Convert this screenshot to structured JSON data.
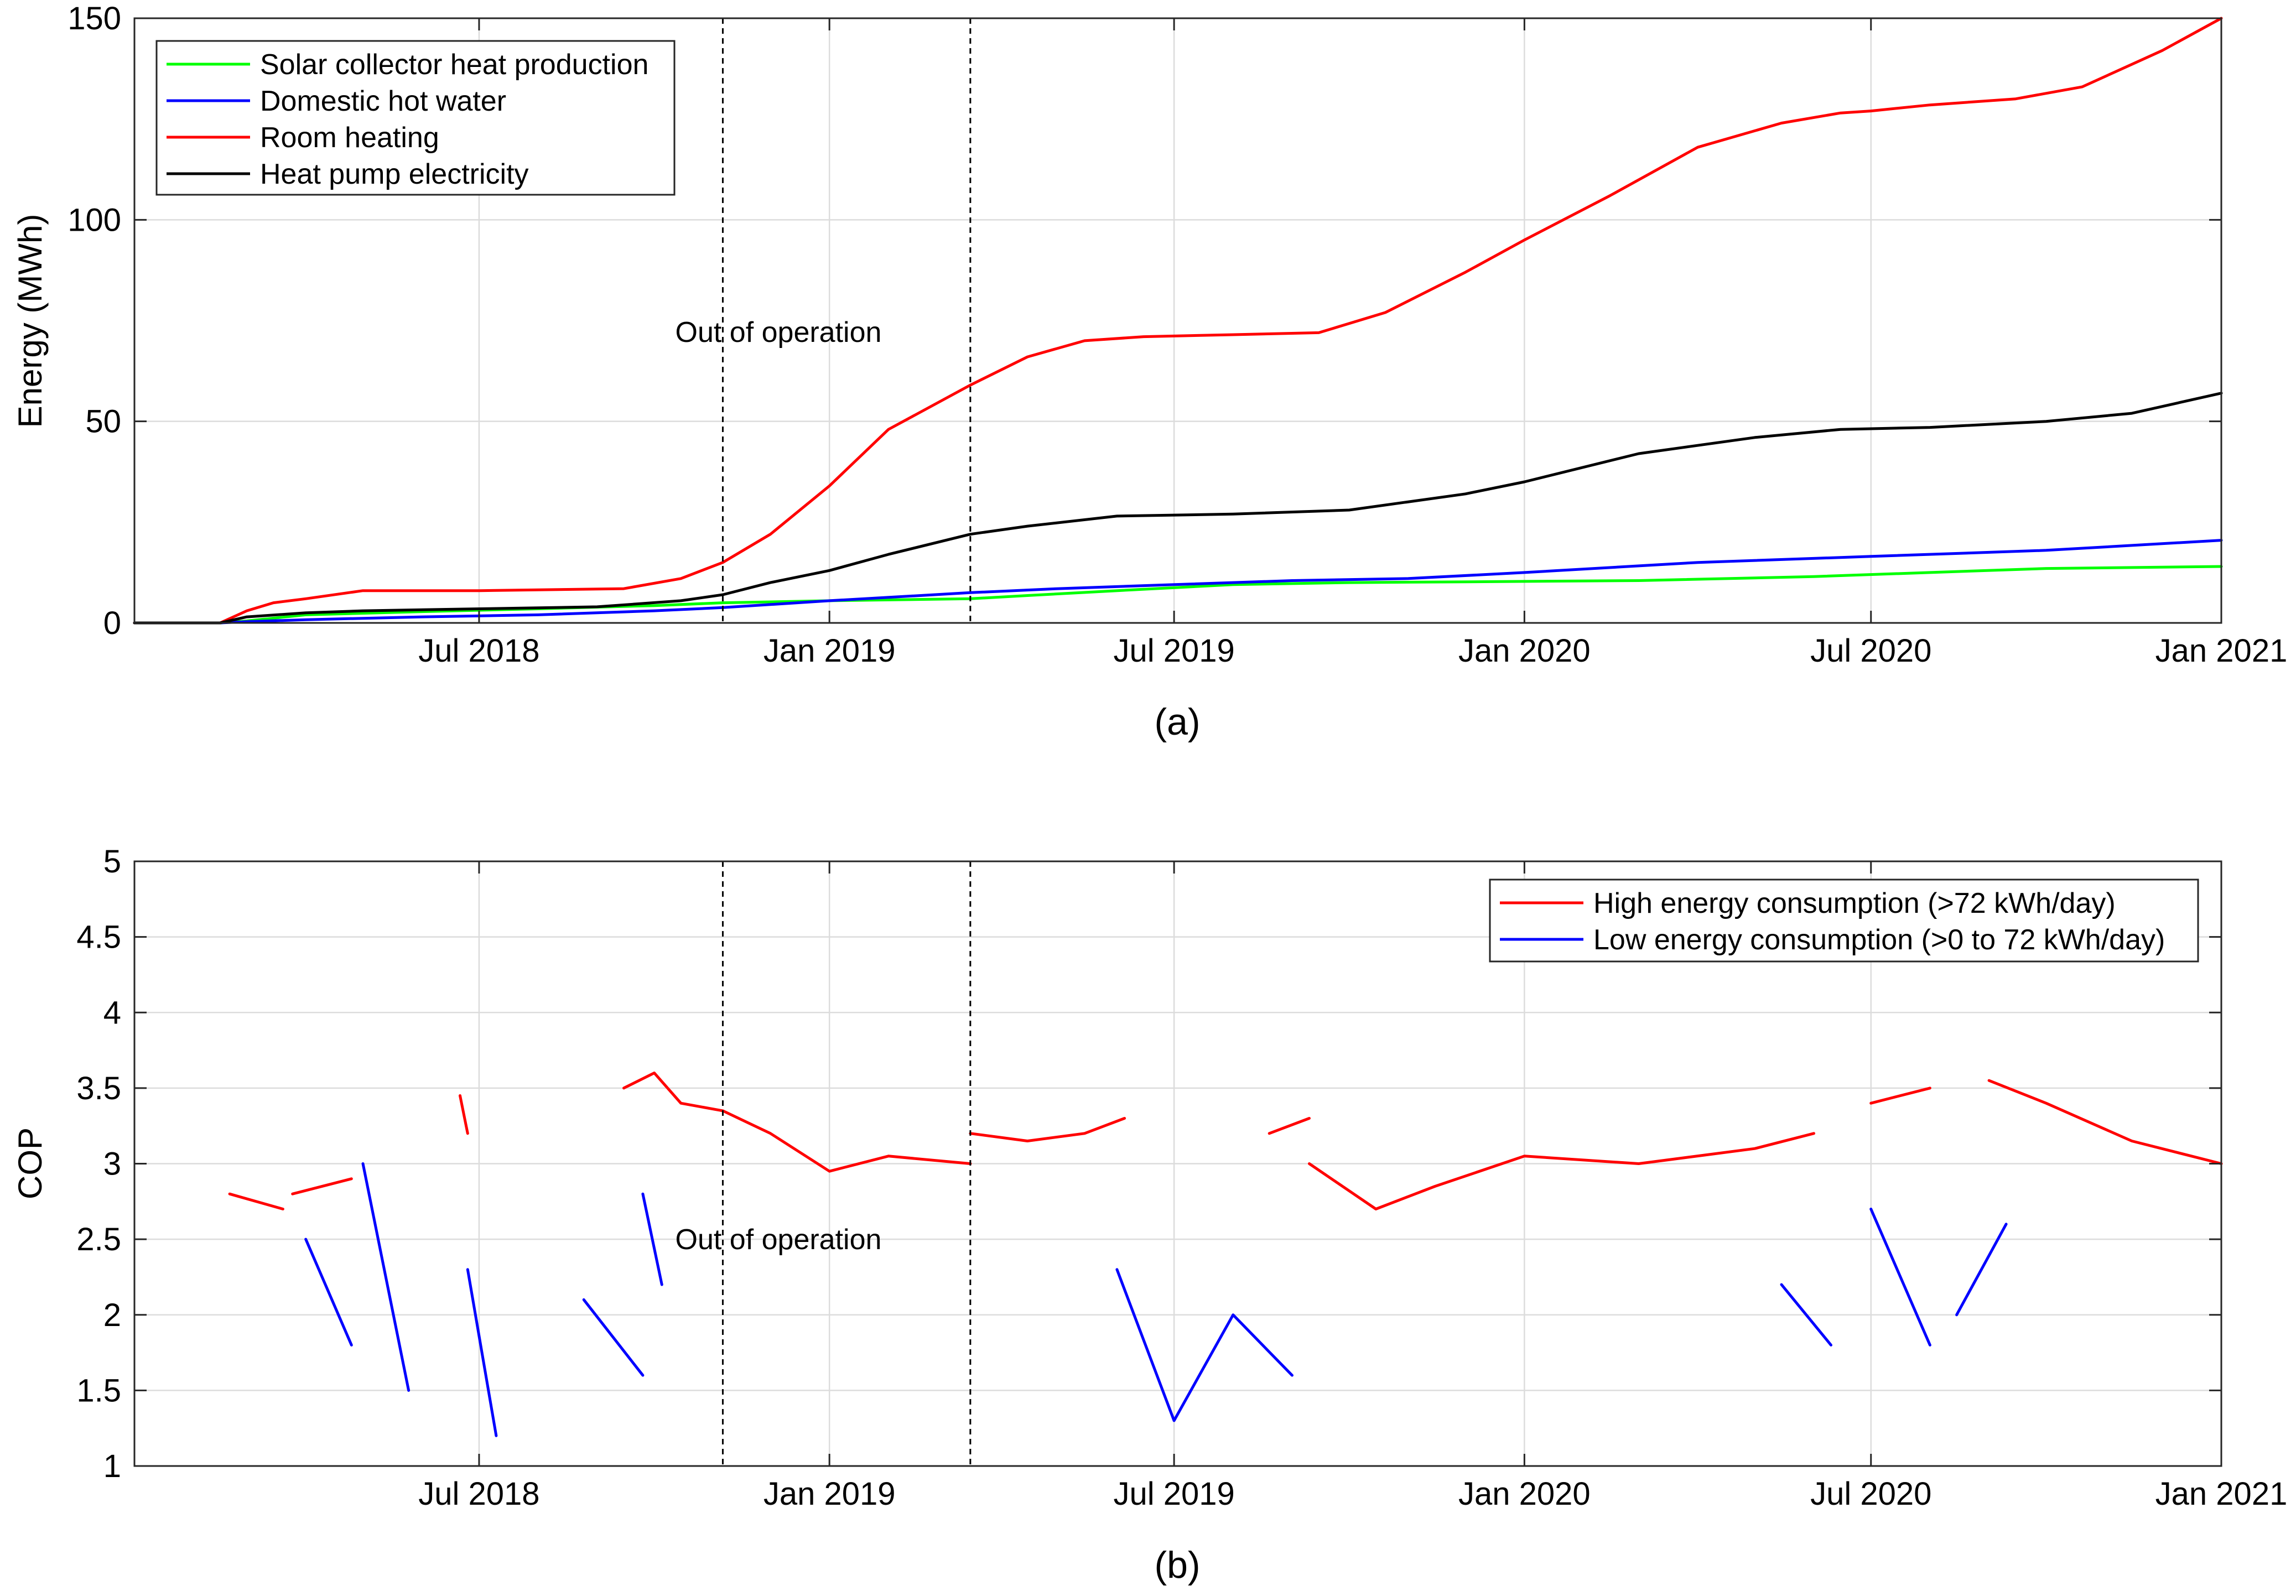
{
  "chart_data": [
    {
      "type": "line",
      "panel_label": "(a)",
      "ylabel": "Energy (MWh)",
      "xlabel": "",
      "xlim": [
        "2018-01-01",
        "2021-01-01"
      ],
      "ylim": [
        0,
        150
      ],
      "yticks": [
        0,
        50,
        100,
        150
      ],
      "ytick_labels": [
        "0",
        "50",
        "100",
        "150"
      ],
      "xticks": [
        "2018-07-01",
        "2019-01-01",
        "2019-07-01",
        "2020-01-01",
        "2020-07-01",
        "2021-01-01"
      ],
      "xtick_labels": [
        "Jul 2018",
        "Jan 2019",
        "Jul 2019",
        "Jan 2020",
        "Jul 2020",
        "Jan 2021"
      ],
      "grid": true,
      "legend_position": "top-left",
      "vlines": [
        "2018-11-06",
        "2019-03-16"
      ],
      "annotation": "Out of operation",
      "series": [
        {
          "name": "Solar collector heat production",
          "color": "#00ff00",
          "x": [
            "2018-01-01",
            "2018-02-15",
            "2018-03-01",
            "2018-04-01",
            "2018-06-01",
            "2018-08-01",
            "2018-10-01",
            "2018-11-06",
            "2019-01-01",
            "2019-03-16",
            "2019-04-15",
            "2019-06-01",
            "2019-08-01",
            "2019-10-01",
            "2019-12-01",
            "2020-03-01",
            "2020-06-01",
            "2020-08-01",
            "2020-10-01",
            "2021-01-01"
          ],
          "y": [
            0,
            0,
            0.5,
            2,
            2.8,
            3.5,
            4.3,
            5,
            5.5,
            6,
            6.8,
            8,
            9.5,
            10,
            10.2,
            10.5,
            11.5,
            12.5,
            13.5,
            14
          ]
        },
        {
          "name": "Domestic hot water",
          "color": "#0000ff",
          "x": [
            "2018-01-01",
            "2018-02-15",
            "2018-03-01",
            "2018-04-01",
            "2018-06-01",
            "2018-08-01",
            "2018-10-01",
            "2018-11-06",
            "2019-01-01",
            "2019-03-16",
            "2019-05-01",
            "2019-07-01",
            "2019-09-01",
            "2019-11-01",
            "2020-01-01",
            "2020-04-01",
            "2020-07-01",
            "2020-10-01",
            "2021-01-01"
          ],
          "y": [
            0,
            0,
            0.3,
            0.8,
            1.5,
            2,
            3,
            3.8,
            5.5,
            7.5,
            8.5,
            9.5,
            10.5,
            11,
            12.5,
            15,
            16.5,
            18,
            20.5
          ]
        },
        {
          "name": "Room heating",
          "color": "#ff0000",
          "x": [
            "2018-01-01",
            "2018-02-15",
            "2018-03-01",
            "2018-03-15",
            "2018-04-01",
            "2018-05-01",
            "2018-07-01",
            "2018-09-15",
            "2018-10-15",
            "2018-11-06",
            "2018-12-01",
            "2019-01-01",
            "2019-02-01",
            "2019-03-16",
            "2019-04-15",
            "2019-05-15",
            "2019-06-15",
            "2019-08-01",
            "2019-09-15",
            "2019-10-20",
            "2019-12-01",
            "2020-01-01",
            "2020-02-15",
            "2020-04-01",
            "2020-05-15",
            "2020-06-15",
            "2020-07-01",
            "2020-08-01",
            "2020-09-15",
            "2020-10-20",
            "2020-12-01",
            "2021-01-01"
          ],
          "y": [
            0,
            0,
            3,
            5,
            6,
            8,
            8,
            8.5,
            11,
            15,
            22,
            34,
            48,
            59,
            66,
            70,
            71,
            71.5,
            72,
            77,
            87,
            95,
            106,
            118,
            124,
            126.5,
            127,
            128.5,
            130,
            133,
            142,
            150
          ]
        },
        {
          "name": "Heat pump electricity",
          "color": "#000000",
          "x": [
            "2018-01-01",
            "2018-02-15",
            "2018-03-01",
            "2018-04-01",
            "2018-05-01",
            "2018-07-01",
            "2018-09-01",
            "2018-10-15",
            "2018-11-06",
            "2018-12-01",
            "2019-01-01",
            "2019-02-01",
            "2019-03-16",
            "2019-04-15",
            "2019-06-01",
            "2019-08-01",
            "2019-10-01",
            "2019-12-01",
            "2020-01-01",
            "2020-03-01",
            "2020-05-01",
            "2020-06-15",
            "2020-08-01",
            "2020-10-01",
            "2020-11-15",
            "2021-01-01"
          ],
          "y": [
            0,
            0,
            1.5,
            2.5,
            3,
            3.5,
            4,
            5.5,
            7,
            10,
            13,
            17,
            22,
            24,
            26.5,
            27,
            28,
            32,
            35,
            42,
            46,
            48,
            48.5,
            50,
            52,
            57
          ]
        }
      ]
    },
    {
      "type": "line",
      "panel_label": "(b)",
      "ylabel": "COP",
      "xlabel": "",
      "xlim": [
        "2018-01-01",
        "2021-01-01"
      ],
      "ylim": [
        1,
        5
      ],
      "yticks": [
        1,
        1.5,
        2,
        2.5,
        3,
        3.5,
        4,
        4.5,
        5
      ],
      "ytick_labels": [
        "1",
        "1.5",
        "2",
        "2.5",
        "3",
        "3.5",
        "4",
        "4.5",
        "5"
      ],
      "xticks": [
        "2018-07-01",
        "2019-01-01",
        "2019-07-01",
        "2020-01-01",
        "2020-07-01",
        "2021-01-01"
      ],
      "xtick_labels": [
        "Jul 2018",
        "Jan 2019",
        "Jul 2019",
        "Jan 2020",
        "Jul 2020",
        "Jan 2021"
      ],
      "grid": true,
      "legend_position": "top-right",
      "vlines": [
        "2018-11-06",
        "2019-03-16"
      ],
      "annotation": "Out of operation",
      "series": [
        {
          "name": "High energy consumption (>72 kWh/day)",
          "color": "#ff0000",
          "segments": [
            {
              "x": [
                "2018-02-20",
                "2018-03-20"
              ],
              "y": [
                2.8,
                2.7
              ]
            },
            {
              "x": [
                "2018-03-25",
                "2018-04-25"
              ],
              "y": [
                2.8,
                2.9
              ]
            },
            {
              "x": [
                "2018-06-21",
                "2018-06-25"
              ],
              "y": [
                3.45,
                3.2
              ]
            },
            {
              "x": [
                "2018-09-15",
                "2018-10-01",
                "2018-10-15",
                "2018-11-06",
                "2018-12-01",
                "2019-01-01",
                "2019-02-01",
                "2019-03-16"
              ],
              "y": [
                3.5,
                3.6,
                3.4,
                3.35,
                3.2,
                2.95,
                3.05,
                3.0
              ]
            },
            {
              "x": [
                "2019-03-16",
                "2019-04-15",
                "2019-05-15",
                "2019-06-05"
              ],
              "y": [
                3.2,
                3.15,
                3.2,
                3.3
              ]
            },
            {
              "x": [
                "2019-08-20",
                "2019-09-10"
              ],
              "y": [
                3.2,
                3.3
              ]
            },
            {
              "x": [
                "2019-09-10",
                "2019-10-15",
                "2019-11-15",
                "2020-01-01",
                "2020-03-01",
                "2020-05-01",
                "2020-06-01"
              ],
              "y": [
                3.0,
                2.7,
                2.85,
                3.05,
                3.0,
                3.1,
                3.2
              ]
            },
            {
              "x": [
                "2020-07-01",
                "2020-08-01"
              ],
              "y": [
                3.4,
                3.5
              ]
            },
            {
              "x": [
                "2020-09-01",
                "2020-10-01",
                "2020-11-15",
                "2021-01-01"
              ],
              "y": [
                3.55,
                3.4,
                3.15,
                3.0
              ]
            }
          ]
        },
        {
          "name": "Low energy consumption (>0 to 72 kWh/day)",
          "color": "#0000ff",
          "segments": [
            {
              "x": [
                "2018-04-01",
                "2018-04-25"
              ],
              "y": [
                2.5,
                1.8
              ]
            },
            {
              "x": [
                "2018-05-01",
                "2018-05-25"
              ],
              "y": [
                3.0,
                1.5
              ]
            },
            {
              "x": [
                "2018-06-25",
                "2018-07-10"
              ],
              "y": [
                2.3,
                1.2
              ]
            },
            {
              "x": [
                "2018-08-25",
                "2018-09-25"
              ],
              "y": [
                2.1,
                1.6
              ]
            },
            {
              "x": [
                "2018-09-25",
                "2018-10-05"
              ],
              "y": [
                2.8,
                2.2
              ]
            },
            {
              "x": [
                "2019-06-01",
                "2019-07-01",
                "2019-08-01",
                "2019-09-01"
              ],
              "y": [
                2.3,
                1.3,
                2.0,
                1.6
              ]
            },
            {
              "x": [
                "2020-05-15",
                "2020-06-10"
              ],
              "y": [
                2.2,
                1.8
              ]
            },
            {
              "x": [
                "2020-07-01",
                "2020-08-01"
              ],
              "y": [
                2.7,
                1.8
              ]
            },
            {
              "x": [
                "2020-08-15",
                "2020-09-10"
              ],
              "y": [
                2.0,
                2.6
              ]
            }
          ]
        }
      ]
    }
  ]
}
